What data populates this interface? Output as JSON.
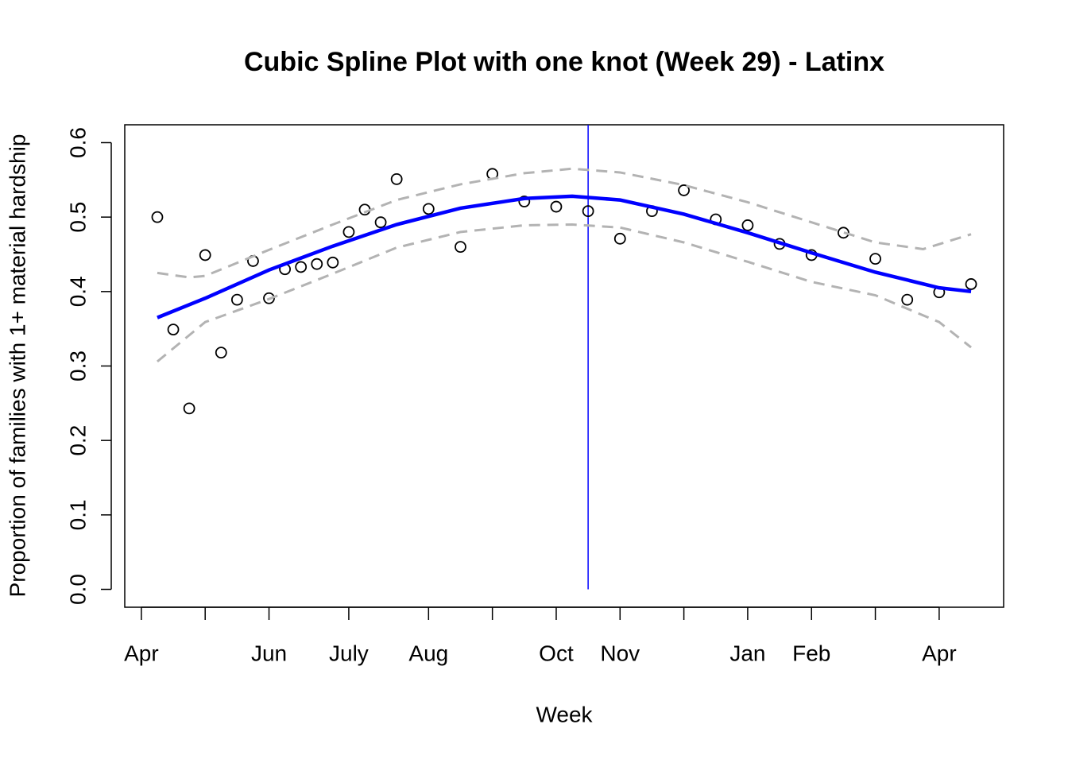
{
  "chart_data": {
    "type": "scatter",
    "title": "Cubic Spline Plot with one knot (Week 29) - Latinx",
    "x_label": "Week",
    "y_label": "Proportion of families with 1+ material hardship",
    "xlim": [
      -0.04,
      55.04
    ],
    "ylim": [
      -0.024,
      0.624
    ],
    "xticks": [
      {
        "value": 1,
        "label": "Apr"
      },
      {
        "value": 5,
        "label": null
      },
      {
        "value": 9,
        "label": "Jun"
      },
      {
        "value": 14,
        "label": "July"
      },
      {
        "value": 19,
        "label": "Aug"
      },
      {
        "value": 23,
        "label": null
      },
      {
        "value": 27,
        "label": "Oct"
      },
      {
        "value": 31,
        "label": "Nov"
      },
      {
        "value": 35,
        "label": null
      },
      {
        "value": 39,
        "label": "Jan"
      },
      {
        "value": 43,
        "label": "Feb"
      },
      {
        "value": 47,
        "label": null
      },
      {
        "value": 51,
        "label": "Apr"
      }
    ],
    "yticks": [
      {
        "value": 0,
        "label": "0.0"
      },
      0.1,
      0.2,
      0.3,
      0.4,
      0.5,
      0.6
    ],
    "vline": {
      "x": 29,
      "color": "#0000ff"
    },
    "series": [
      {
        "mark": "circle",
        "color": "#000000",
        "x": [
          2,
          3,
          4,
          5,
          6,
          7,
          8,
          9,
          10,
          11,
          12,
          13,
          14,
          15,
          16,
          17,
          19,
          21,
          23,
          25,
          27,
          29,
          31,
          33,
          35,
          37,
          39,
          41,
          43,
          45,
          47,
          49,
          51,
          53
        ],
        "values": [
          0.5,
          0.349,
          0.243,
          0.449,
          0.318,
          0.389,
          0.441,
          0.391,
          0.43,
          0.433,
          0.437,
          0.439,
          0.48,
          0.51,
          0.493,
          0.551,
          0.511,
          0.46,
          0.558,
          0.521,
          0.514,
          0.508,
          0.471,
          0.508,
          0.536,
          0.497,
          0.489,
          0.464,
          0.449,
          0.479,
          0.444,
          0.389,
          0.399,
          0.41
        ]
      },
      {
        "mark": "line",
        "color": "#0000ff",
        "dash": false,
        "x": [
          2,
          5,
          9,
          13,
          17,
          21,
          25,
          28,
          31,
          35,
          39,
          43,
          47,
          51,
          53
        ],
        "values": [
          0.365,
          0.391,
          0.429,
          0.461,
          0.49,
          0.512,
          0.525,
          0.528,
          0.523,
          0.504,
          0.479,
          0.452,
          0.426,
          0.405,
          0.4
        ]
      },
      {
        "mark": "line",
        "color": "#b3b3b3",
        "dash": true,
        "x": [
          2,
          4,
          5,
          9,
          13,
          17,
          21,
          25,
          28,
          31,
          35,
          39,
          43,
          47,
          50,
          53
        ],
        "values": [
          0.425,
          0.419,
          0.421,
          0.456,
          0.49,
          0.523,
          0.544,
          0.559,
          0.565,
          0.56,
          0.543,
          0.52,
          0.493,
          0.466,
          0.457,
          0.477
        ]
      },
      {
        "mark": "line",
        "color": "#b3b3b3",
        "dash": true,
        "x": [
          2,
          5,
          9,
          13,
          17,
          21,
          25,
          28,
          31,
          35,
          39,
          43,
          47,
          51,
          53
        ],
        "values": [
          0.306,
          0.359,
          0.39,
          0.424,
          0.459,
          0.48,
          0.489,
          0.49,
          0.486,
          0.466,
          0.44,
          0.413,
          0.395,
          0.359,
          0.325
        ]
      }
    ]
  }
}
